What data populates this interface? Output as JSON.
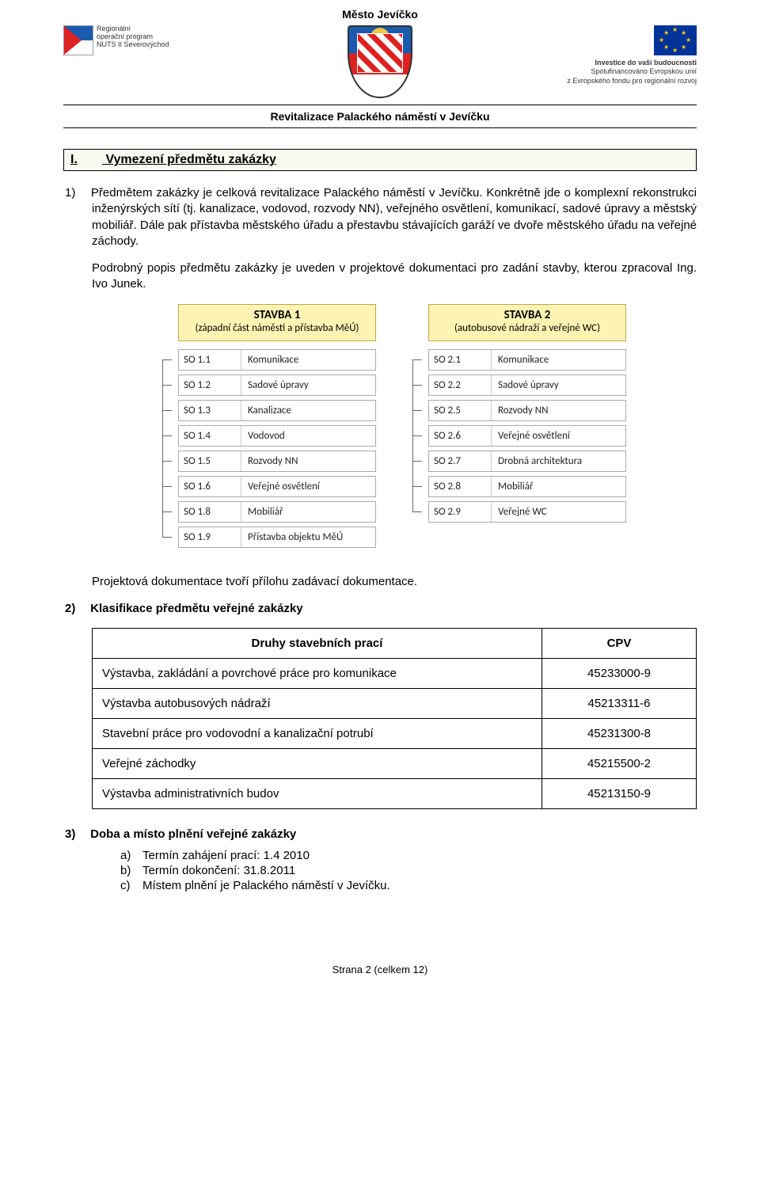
{
  "header": {
    "city": "Město Jevíčko",
    "subtitle": "Revitalizace Palackého náměstí v Jevíčku",
    "rop": {
      "line1": "Regionální",
      "line2": "operační program",
      "line3": "NUTS II Severovýchod"
    },
    "eu": {
      "title": "Investice do vaší budoucnosti",
      "line1": "Spolufinancováno Evropskou unií",
      "line2": "z Evropského fondu pro regionální rozvoj"
    }
  },
  "section1": {
    "num": "I.",
    "title": "Vymezení předmětu zakázky",
    "item1_marker": "1)",
    "item1_text": "Předmětem zakázky je celková revitalizace Palackého náměstí v Jevíčku. Konkrétně jde o komplexní rekonstrukci inženýrských sítí (tj. kanalizace, vodovod, rozvody NN), veřejného osvětlení, komunikací, sadové úpravy a městský mobiliář. Dále pak přístavba městského úřadu a přestavbu stávajících garáží ve dvoře městského úřadu na veřejné záchody.",
    "item1_p2": "Podrobný popis předmětu zakázky je uveden v projektové dokumentaci pro zadání stavby, kterou zpracoval Ing. Ivo Junek.",
    "diagram": {
      "colors": {
        "header_bg": "#fdf4b3",
        "header_border": "#bfa64a",
        "box_border": "#aaaaaa",
        "connector": "#666666"
      },
      "left": {
        "title_strong": "STAVBA 1",
        "title_sub": "(západní část náměstí a přístavba MěÚ)",
        "rows": [
          {
            "code": "SO 1.1",
            "label": "Komunikace"
          },
          {
            "code": "SO 1.2",
            "label": "Sadové úpravy"
          },
          {
            "code": "SO 1.3",
            "label": "Kanalizace"
          },
          {
            "code": "SO 1.4",
            "label": "Vodovod"
          },
          {
            "code": "SO 1.5",
            "label": "Rozvody NN"
          },
          {
            "code": "SO 1.6",
            "label": "Veřejné osvětlení"
          },
          {
            "code": "SO 1.8",
            "label": "Mobiliář"
          },
          {
            "code": "SO 1.9",
            "label": "Přístavba objektu MěÚ"
          }
        ]
      },
      "right": {
        "title_strong": "STAVBA 2",
        "title_sub": "(autobusové nádraží a veřejné WC)",
        "rows": [
          {
            "code": "SO 2.1",
            "label": "Komunikace"
          },
          {
            "code": "SO 2.2",
            "label": "Sadové úpravy"
          },
          {
            "code": "SO 2.5",
            "label": "Rozvody NN"
          },
          {
            "code": "SO 2.6",
            "label": "Veřejné osvětlení"
          },
          {
            "code": "SO 2.7",
            "label": "Drobná architektura"
          },
          {
            "code": "SO 2.8",
            "label": "Mobiliář"
          },
          {
            "code": "SO 2.9",
            "label": "Veřejné WC"
          }
        ]
      }
    },
    "after_diagram": "Projektová dokumentace tvoří přílohu zadávací dokumentace.",
    "item2_marker": "2)",
    "item2_title": "Klasifikace předmětu veřejné zakázky",
    "cpv_table": {
      "headers": {
        "works": "Druhy stavebních prací",
        "cpv": "CPV"
      },
      "rows": [
        {
          "works": "Výstavba, zakládání a povrchové práce pro komunikace",
          "cpv": "45233000-9"
        },
        {
          "works": "Výstavba autobusových nádraží",
          "cpv": "45213311-6"
        },
        {
          "works": "Stavební práce pro vodovodní a kanalizační potrubí",
          "cpv": "45231300-8"
        },
        {
          "works": "Veřejné záchodky",
          "cpv": "45215500-2"
        },
        {
          "works": "Výstavba administrativních budov",
          "cpv": "45213150-9"
        }
      ]
    },
    "item3_marker": "3)",
    "item3_title": "Doba a místo plnění veřejné zakázky",
    "item3_sub": [
      {
        "m": "a)",
        "t": "Termín zahájení prací: 1.4 2010"
      },
      {
        "m": "b)",
        "t": "Termín dokončení: 31.8.2011"
      },
      {
        "m": "c)",
        "t": "Místem plnění je Palackého náměstí v Jevíčku."
      }
    ]
  },
  "footer": "Strana 2 (celkem 12)"
}
